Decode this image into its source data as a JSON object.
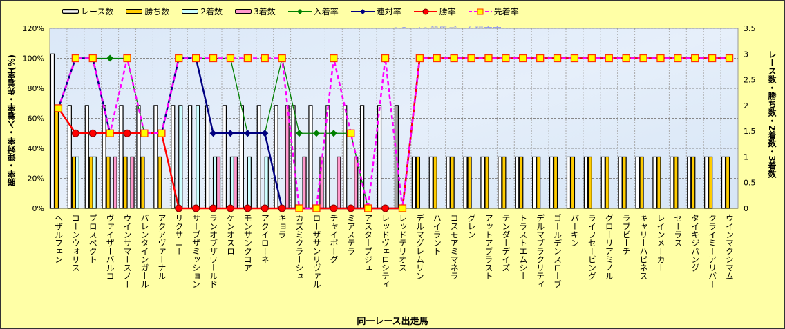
{
  "chart_data": {
    "type": "bar",
    "title": "",
    "watermark": "@Ganiの競馬データ研究室",
    "xlabel": "同一レース出走馬",
    "ylabel_left": "勝率・連対率・入着率・先着率(%)",
    "ylabel_right": "レース数・勝ち数・2着数・3着数",
    "ylim_left": [
      0,
      120
    ],
    "yticks_left": [
      "0%",
      "20%",
      "40%",
      "60%",
      "80%",
      "100%",
      "120%"
    ],
    "ylim_right": [
      0,
      3.5
    ],
    "yticks_right": [
      "0",
      "0.5",
      "1",
      "1.5",
      "2",
      "2.5",
      "3",
      "3.5"
    ],
    "legend_position": "top",
    "categories": [
      "ヘザルフェン",
      "コーンウォリス",
      "プロスペクト",
      "ヴァイザーバルコ",
      "ウインサマースノー",
      "バレンタインガール",
      "アクアヴァーナル",
      "リクサニー",
      "サーブザミッション",
      "ランオブザワールド",
      "ケンオスロ",
      "モンサンクコア",
      "アクイローネ",
      "キョラ",
      "カズミクラーシュ",
      "ローザサンリヴァル",
      "チャイボーグ",
      "ミアステラ",
      "アスタープジェ",
      "レッドヴェロシティ",
      "レッドテリオス",
      "デルマグレムリン",
      "ハイラント",
      "コスモアミマネラ",
      "グレン",
      "アットアブラスト",
      "テンダーデイズ",
      "トラストエムシー",
      "デルマブラクリティ",
      "ゴールデンスローブ",
      "パーキン",
      "ライフセービング",
      "グローリアミノル",
      "ラブビーチ",
      "キャリーハピネス",
      "レインメーカー",
      "セーラス",
      "タイキジパング",
      "クライミーアリバー",
      "ウインマクシマム"
    ],
    "bar_series": [
      {
        "name": "レース数",
        "axis": "right",
        "color": "#ffffff",
        "values": [
          3,
          2,
          2,
          2,
          2,
          2,
          2,
          2,
          2,
          2,
          2,
          2,
          2,
          2,
          2,
          2,
          2,
          2,
          2,
          2,
          2,
          1,
          1,
          1,
          1,
          1,
          1,
          1,
          1,
          1,
          1,
          1,
          1,
          1,
          1,
          1,
          1,
          1,
          1,
          1
        ]
      },
      {
        "name": "勝ち数",
        "axis": "right",
        "color": "#ffcc00",
        "values": [
          2,
          1,
          1,
          1,
          1,
          1,
          1,
          0,
          0,
          0,
          0,
          0,
          0,
          0,
          0,
          0,
          0,
          0,
          0,
          0,
          0,
          1,
          1,
          1,
          1,
          1,
          1,
          1,
          1,
          1,
          1,
          1,
          1,
          1,
          1,
          1,
          1,
          1,
          1,
          1
        ]
      },
      {
        "name": "2着数",
        "axis": "right",
        "color": "#ccffff",
        "values": [
          0,
          1,
          1,
          0,
          0,
          0,
          0,
          2,
          2,
          1,
          1,
          1,
          1,
          0,
          0,
          0,
          0,
          0,
          0,
          0,
          0,
          0,
          0,
          0,
          0,
          0,
          0,
          0,
          0,
          0,
          0,
          0,
          0,
          0,
          0,
          0,
          0,
          0,
          0,
          0
        ]
      },
      {
        "name": "3着数",
        "axis": "right",
        "color": "#ff99cc",
        "values": [
          0,
          0,
          0,
          1,
          1,
          0,
          0,
          0,
          0,
          1,
          1,
          0,
          0,
          2,
          1,
          1,
          1,
          1,
          0,
          0,
          0,
          0,
          0,
          0,
          0,
          0,
          0,
          0,
          0,
          0,
          0,
          0,
          0,
          0,
          0,
          0,
          0,
          0,
          0,
          0
        ]
      }
    ],
    "highlight_race_bar": {
      "category": "レッドテリオス",
      "color": "#a6a6a6"
    },
    "line_series": [
      {
        "name": "入着率",
        "axis": "left",
        "color": "#008000",
        "marker": "diamond",
        "values": [
          66.7,
          100,
          100,
          100,
          100,
          50,
          50,
          100,
          100,
          100,
          100,
          50,
          50,
          100,
          50,
          50,
          50,
          50,
          0,
          0,
          0,
          100,
          100,
          100,
          100,
          100,
          100,
          100,
          100,
          100,
          100,
          100,
          100,
          100,
          100,
          100,
          100,
          100,
          100,
          100
        ]
      },
      {
        "name": "連対率",
        "axis": "left",
        "color": "#000080",
        "marker": "diamond",
        "values": [
          66.7,
          100,
          100,
          50,
          50,
          50,
          50,
          100,
          100,
          50,
          50,
          50,
          50,
          0,
          0,
          0,
          0,
          0,
          0,
          0,
          0,
          100,
          100,
          100,
          100,
          100,
          100,
          100,
          100,
          100,
          100,
          100,
          100,
          100,
          100,
          100,
          100,
          100,
          100,
          100
        ]
      },
      {
        "name": "勝率",
        "axis": "left",
        "color": "#ff0000",
        "marker": "circle",
        "values": [
          66.7,
          50,
          50,
          50,
          50,
          50,
          50,
          0,
          0,
          0,
          0,
          0,
          0,
          0,
          0,
          0,
          0,
          0,
          0,
          0,
          0,
          100,
          100,
          100,
          100,
          100,
          100,
          100,
          100,
          100,
          100,
          100,
          100,
          100,
          100,
          100,
          100,
          100,
          100,
          100
        ]
      },
      {
        "name": "先着率",
        "axis": "left",
        "color": "#ff00ff",
        "marker": "square",
        "dashed": true,
        "values": [
          66.7,
          100,
          100,
          50,
          100,
          50,
          50,
          100,
          100,
          100,
          100,
          100,
          100,
          100,
          0,
          0,
          100,
          50,
          0,
          100,
          0,
          100,
          100,
          100,
          100,
          100,
          100,
          100,
          100,
          100,
          100,
          100,
          100,
          100,
          100,
          100,
          100,
          100,
          100,
          100
        ]
      }
    ]
  }
}
